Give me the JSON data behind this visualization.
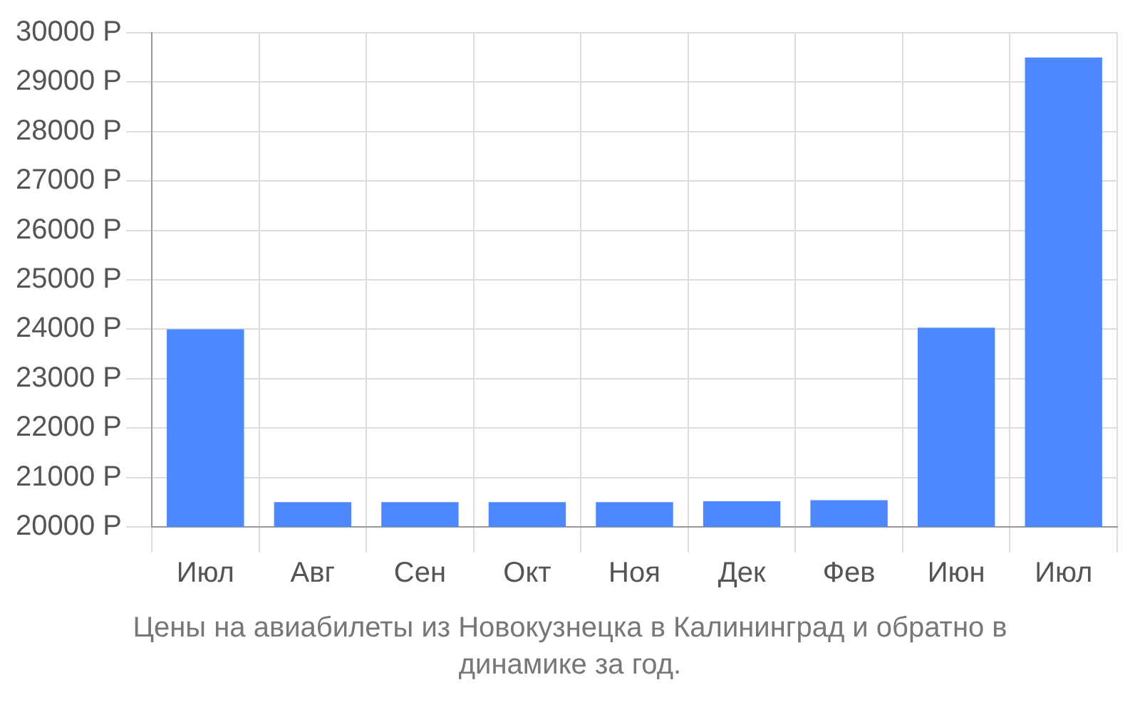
{
  "chart_data": {
    "type": "bar",
    "categories": [
      "Июл",
      "Авг",
      "Сен",
      "Окт",
      "Ноя",
      "Дек",
      "Фев",
      "Июн",
      "Июл"
    ],
    "values": [
      24000,
      20500,
      20500,
      20500,
      20500,
      20520,
      20540,
      24030,
      29500
    ],
    "color": "#4d88ff",
    "ylim": [
      20000,
      30000
    ],
    "yticks": [
      {
        "value": 20000,
        "label": "20000 Р"
      },
      {
        "value": 21000,
        "label": "21000 Р"
      },
      {
        "value": 22000,
        "label": "22000 Р"
      },
      {
        "value": 23000,
        "label": "23000 Р"
      },
      {
        "value": 24000,
        "label": "24000 Р"
      },
      {
        "value": 25000,
        "label": "25000 Р"
      },
      {
        "value": 26000,
        "label": "26000 Р"
      },
      {
        "value": 27000,
        "label": "27000 Р"
      },
      {
        "value": 28000,
        "label": "28000 Р"
      },
      {
        "value": 29000,
        "label": "29000 Р"
      },
      {
        "value": 30000,
        "label": "30000 Р"
      }
    ],
    "grid": true,
    "annotations": [
      "Цены на авиабилеты из Новокузнецка в Калининград и обратно в динамике за год."
    ]
  }
}
